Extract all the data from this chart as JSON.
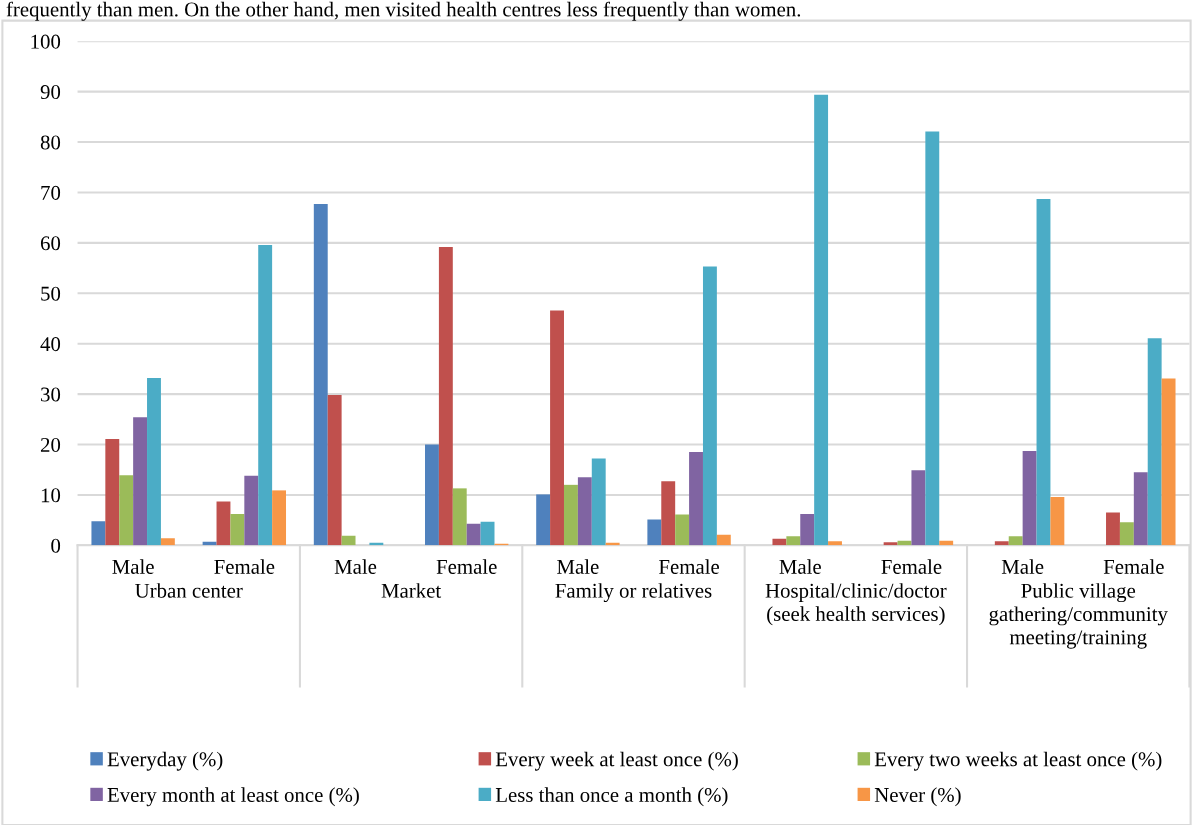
{
  "chart_data": {
    "type": "bar",
    "categories": [
      "Male",
      "Female",
      "Male",
      "Female",
      "Male",
      "Female",
      "Male",
      "Female",
      "Male",
      "Female"
    ],
    "series": [
      {
        "name": "Everyday (%)",
        "color": "#4f81bd",
        "values": [
          4.8,
          0.7,
          67.7,
          20.0,
          10.1,
          5.1,
          0,
          0,
          0,
          0
        ]
      },
      {
        "name": "Every week at least once (%)",
        "color": "#c0504d",
        "values": [
          21.1,
          8.7,
          29.8,
          59.2,
          46.6,
          12.7,
          1.3,
          0.6,
          0.8,
          6.5
        ]
      },
      {
        "name": "Every two weeks at least once (%)",
        "color": "#9bbb59",
        "values": [
          13.9,
          6.2,
          1.9,
          11.3,
          12.0,
          6.1,
          1.8,
          0.9,
          1.8,
          4.6
        ]
      },
      {
        "name": "Every month at least once (%)",
        "color": "#8064a2",
        "values": [
          25.4,
          13.8,
          0,
          4.3,
          13.5,
          18.5,
          6.2,
          14.9,
          18.7,
          14.5
        ]
      },
      {
        "name": "Less than once a month (%)",
        "color": "#4bacc6",
        "values": [
          33.2,
          59.6,
          0.5,
          4.7,
          17.2,
          55.3,
          89.4,
          82.1,
          68.7,
          41.1
        ]
      },
      {
        "name": "Never (%)",
        "color": "#f79646",
        "values": [
          1.4,
          10.9,
          0,
          0.3,
          0.5,
          2.1,
          0.8,
          0.9,
          9.6,
          33.1
        ]
      }
    ],
    "annotations": [
      "Urban center",
      "Market",
      "Family or relatives",
      "Hospital/clinic/doctor\n(seek health services)",
      "Public village\ngathering/community\nmeeting/training",
      "frequently than men. On the other hand, men visited health centres less frequently than women."
    ],
    "ylim": [
      0,
      100
    ],
    "yticks": [
      0,
      10,
      20,
      30,
      40,
      50,
      60,
      70,
      80,
      90,
      100
    ],
    "grid": "y",
    "legend": "bottom"
  }
}
